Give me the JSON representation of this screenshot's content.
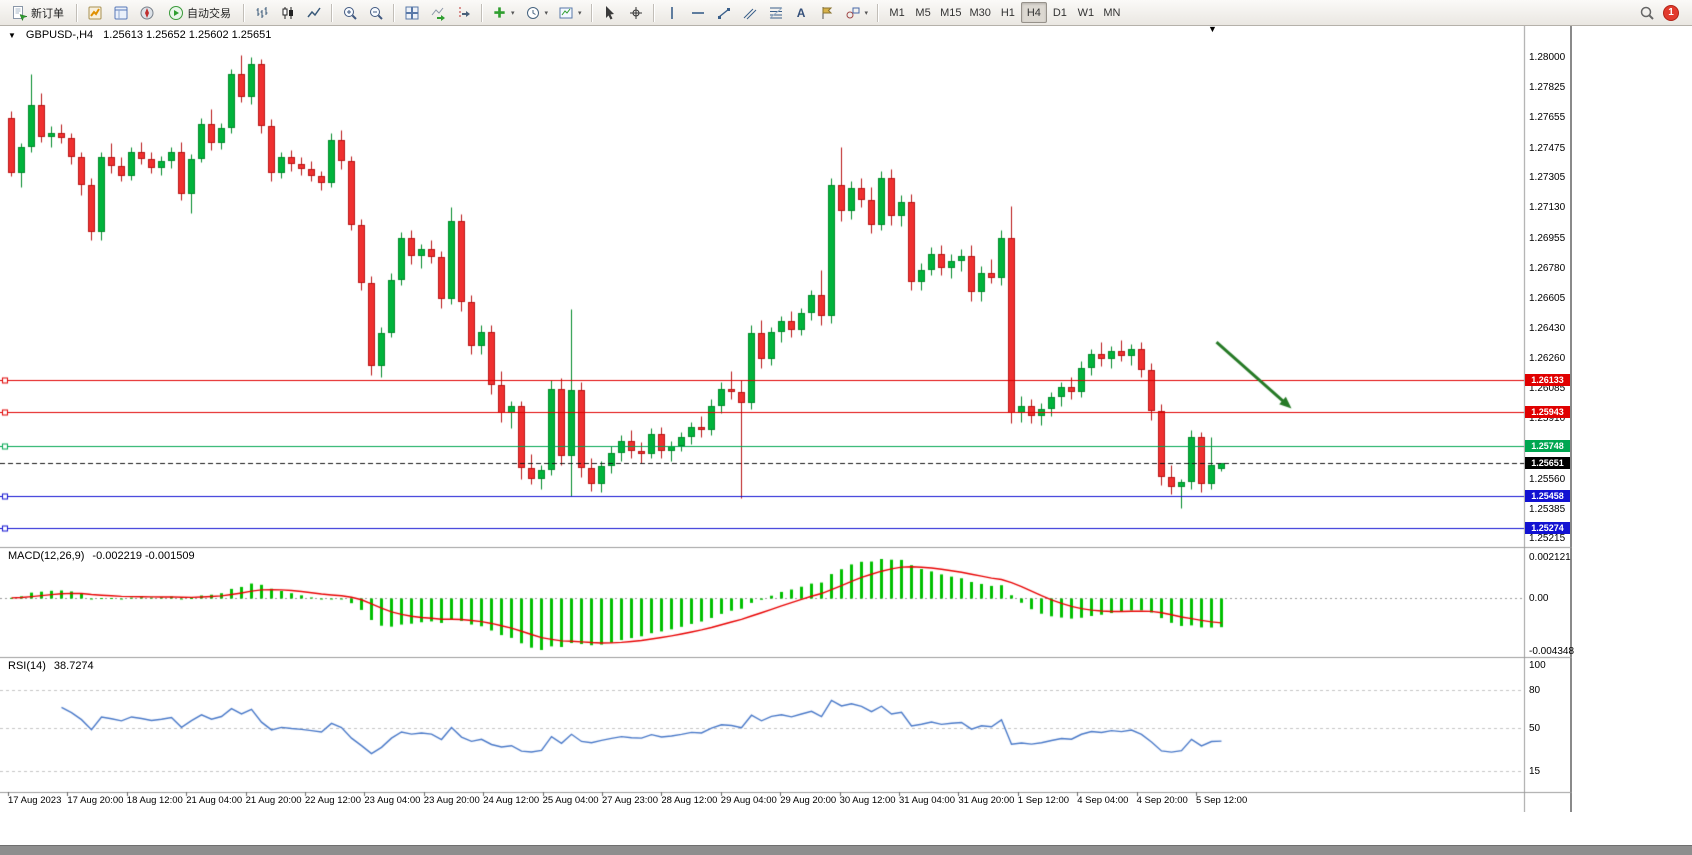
{
  "toolbar": {
    "new_order_label": "新订单",
    "auto_trading_label": "自动交易",
    "text_tool_label": "A",
    "timeframes": [
      "M1",
      "M5",
      "M15",
      "M30",
      "H1",
      "H4",
      "D1",
      "W1",
      "MN"
    ],
    "active_timeframe": "H4",
    "notification_count": "1",
    "icons": [
      "new-order",
      "market-watch",
      "data-window",
      "navigator",
      "auto-trading",
      "bar-chart",
      "candlestick-chart",
      "line-chart",
      "zoom-in",
      "zoom-out",
      "tile-windows",
      "auto-scroll",
      "chart-shift",
      "indicators",
      "periods",
      "templates",
      "cursor",
      "crosshair",
      "vertical-line",
      "horizontal-line",
      "trendline",
      "channel",
      "fibonacci",
      "text",
      "text-label",
      "shapes",
      "search",
      "notification"
    ]
  },
  "chart": {
    "symbol": "GBPUSD-",
    "timeframe": "H4",
    "title": "GBPUSD-,H4",
    "ohlc": "1.25613 1.25652 1.25602 1.25651",
    "open": "1.25613",
    "high": "1.25652",
    "low": "1.25602",
    "close": "1.25651",
    "price_axis": [
      "1.28000",
      "1.27825",
      "1.27655",
      "1.27475",
      "1.27305",
      "1.27130",
      "1.26955",
      "1.26780",
      "1.26605",
      "1.26430",
      "1.26260",
      "1.26085",
      "1.25910",
      "1.25735",
      "1.25560",
      "1.25385",
      "1.25215"
    ],
    "time_axis": [
      "17 Aug 2023",
      "17 Aug 20:00",
      "18 Aug 12:00",
      "21 Aug 04:00",
      "21 Aug 20:00",
      "22 Aug 12:00",
      "23 Aug 04:00",
      "23 Aug 20:00",
      "24 Aug 12:00",
      "25 Aug 04:00",
      "27 Aug 23:00",
      "28 Aug 12:00",
      "29 Aug 04:00",
      "29 Aug 20:00",
      "30 Aug 12:00",
      "31 Aug 04:00",
      "31 Aug 20:00",
      "1 Sep 12:00",
      "4 Sep 04:00",
      "4 Sep 20:00",
      "5 Sep 12:00"
    ],
    "levels": [
      {
        "label": "1.26133",
        "price": 1.26133,
        "color": "#e00000"
      },
      {
        "label": "1.25943",
        "price": 1.25943,
        "color": "#e00000"
      },
      {
        "label": "1.25748",
        "price": 1.25748,
        "color": "#00a651"
      },
      {
        "label": "1.25458",
        "price": 1.25458,
        "color": "#1212d2"
      },
      {
        "label": "1.25274",
        "price": 1.25274,
        "color": "#1212d2"
      }
    ],
    "current_price": {
      "label": "1.25651",
      "price": 1.25651,
      "color": "#000000"
    },
    "colors": {
      "up": "#00b43c",
      "up_border": "#008a2a",
      "down": "#f03030",
      "down_border": "#b81414",
      "background": "#ffffff",
      "axis_text": "#000000"
    },
    "arrow": {
      "from_bar": 120.5,
      "from_price": 1.2635,
      "to_bar": 128.0,
      "to_price": 1.25965,
      "color": "#267a26"
    }
  },
  "macd": {
    "name": "MACD(12,26,9)",
    "values_label": "-0.002219 -0.001509",
    "main_value": -0.002219,
    "signal_value": -0.001509,
    "scale": [
      "0.002121",
      "0.00",
      "-0.004348"
    ],
    "histogram_color": "#00c000",
    "signal_color": "#e80000",
    "params": {
      "fast": 12,
      "slow": 26,
      "signal": 9
    }
  },
  "rsi": {
    "name": "RSI(14)",
    "value_label": "38.7274",
    "value": 38.7274,
    "scale": [
      "100",
      "80",
      "50",
      "15"
    ],
    "line_color": "#4878c8",
    "period": 14
  },
  "chart_data": {
    "type": "candlestick",
    "symbol": "GBPUSD-",
    "timeframe": "H4",
    "title": "GBPUSD-,H4",
    "visible_price_range": [
      1.25163,
      1.2818
    ],
    "indicators": [
      {
        "name": "MACD",
        "params": [
          12,
          26,
          9
        ],
        "last_values": [
          -0.002219,
          -0.001509
        ],
        "scale_max": 0.002121,
        "scale_min": -0.004348
      },
      {
        "name": "RSI",
        "params": [
          14
        ],
        "last_value": 38.7274,
        "scale": [
          100,
          80,
          50,
          15
        ]
      }
    ],
    "ohlc_format": [
      "open",
      "high",
      "low",
      "close"
    ],
    "candles": [
      [
        1.2765,
        1.2769,
        1.2731,
        1.2733
      ],
      [
        1.2733,
        1.275,
        1.2725,
        1.2748
      ],
      [
        1.2748,
        1.279,
        1.2745,
        1.2772
      ],
      [
        1.2772,
        1.2779,
        1.2751,
        1.2754
      ],
      [
        1.2754,
        1.276,
        1.2748,
        1.2756
      ],
      [
        1.2756,
        1.2761,
        1.275,
        1.2753
      ],
      [
        1.2753,
        1.2756,
        1.2738,
        1.2742
      ],
      [
        1.2742,
        1.2745,
        1.272,
        1.2726
      ],
      [
        1.2726,
        1.273,
        1.2694,
        1.2699
      ],
      [
        1.2699,
        1.2745,
        1.2694,
        1.2742
      ],
      [
        1.2742,
        1.275,
        1.2733,
        1.2737
      ],
      [
        1.2737,
        1.2742,
        1.2728,
        1.2731
      ],
      [
        1.2731,
        1.2748,
        1.2729,
        1.2745
      ],
      [
        1.2745,
        1.2751,
        1.2738,
        1.2741
      ],
      [
        1.2741,
        1.2745,
        1.2733,
        1.2736
      ],
      [
        1.2736,
        1.2743,
        1.2732,
        1.274
      ],
      [
        1.274,
        1.2748,
        1.2736,
        1.2745
      ],
      [
        1.2745,
        1.2751,
        1.2717,
        1.2721
      ],
      [
        1.2721,
        1.2744,
        1.271,
        1.2741
      ],
      [
        1.2741,
        1.2765,
        1.2739,
        1.2761
      ],
      [
        1.2761,
        1.277,
        1.2746,
        1.275
      ],
      [
        1.275,
        1.2762,
        1.2747,
        1.2759
      ],
      [
        1.2759,
        1.2793,
        1.2756,
        1.279
      ],
      [
        1.279,
        1.2801,
        1.2774,
        1.2777
      ],
      [
        1.2777,
        1.28,
        1.2773,
        1.2796
      ],
      [
        1.2796,
        1.2799,
        1.2756,
        1.276
      ],
      [
        1.276,
        1.2764,
        1.2728,
        1.2733
      ],
      [
        1.2733,
        1.2745,
        1.273,
        1.2742
      ],
      [
        1.2742,
        1.2746,
        1.2734,
        1.2738
      ],
      [
        1.2738,
        1.2742,
        1.2732,
        1.2735
      ],
      [
        1.2735,
        1.274,
        1.2728,
        1.2731
      ],
      [
        1.2731,
        1.2734,
        1.2723,
        1.2727
      ],
      [
        1.2727,
        1.2756,
        1.2725,
        1.2752
      ],
      [
        1.2752,
        1.2758,
        1.2735,
        1.274
      ],
      [
        1.274,
        1.2743,
        1.27,
        1.2703
      ],
      [
        1.2703,
        1.2706,
        1.2665,
        1.2669
      ],
      [
        1.2669,
        1.2673,
        1.2616,
        1.2621
      ],
      [
        1.2621,
        1.2644,
        1.2615,
        1.264
      ],
      [
        1.264,
        1.2675,
        1.2638,
        1.2671
      ],
      [
        1.2671,
        1.2699,
        1.2668,
        1.2695
      ],
      [
        1.2695,
        1.27,
        1.268,
        1.2685
      ],
      [
        1.2685,
        1.2692,
        1.2678,
        1.2689
      ],
      [
        1.2689,
        1.2694,
        1.2681,
        1.2684
      ],
      [
        1.2684,
        1.2688,
        1.2655,
        1.266
      ],
      [
        1.266,
        1.2713,
        1.2657,
        1.2705
      ],
      [
        1.2705,
        1.2709,
        1.2653,
        1.2658
      ],
      [
        1.2658,
        1.2662,
        1.2628,
        1.2633
      ],
      [
        1.2633,
        1.2645,
        1.2628,
        1.2641
      ],
      [
        1.2641,
        1.2645,
        1.2605,
        1.261
      ],
      [
        1.261,
        1.2618,
        1.2589,
        1.2594
      ],
      [
        1.2594,
        1.2601,
        1.2585,
        1.2598
      ],
      [
        1.2598,
        1.2601,
        1.2556,
        1.2562
      ],
      [
        1.2562,
        1.257,
        1.2553,
        1.2556
      ],
      [
        1.2556,
        1.2564,
        1.255,
        1.2561
      ],
      [
        1.2561,
        1.2613,
        1.2558,
        1.2608
      ],
      [
        1.2608,
        1.2614,
        1.2564,
        1.2569
      ],
      [
        1.2569,
        1.2654,
        1.2546,
        1.2607
      ],
      [
        1.2607,
        1.2612,
        1.2557,
        1.2562
      ],
      [
        1.2562,
        1.2568,
        1.2549,
        1.2553
      ],
      [
        1.2553,
        1.2566,
        1.2548,
        1.2563
      ],
      [
        1.2563,
        1.2575,
        1.2559,
        1.2571
      ],
      [
        1.2571,
        1.2581,
        1.2566,
        1.2578
      ],
      [
        1.2578,
        1.2584,
        1.2568,
        1.2572
      ],
      [
        1.2572,
        1.2577,
        1.2565,
        1.257
      ],
      [
        1.257,
        1.2585,
        1.2568,
        1.2582
      ],
      [
        1.2582,
        1.2586,
        1.2568,
        1.2572
      ],
      [
        1.2572,
        1.2578,
        1.2566,
        1.2575
      ],
      [
        1.2575,
        1.2583,
        1.2572,
        1.258
      ],
      [
        1.258,
        1.2589,
        1.2576,
        1.2586
      ],
      [
        1.2586,
        1.2592,
        1.258,
        1.2584
      ],
      [
        1.2584,
        1.2602,
        1.2581,
        1.2598
      ],
      [
        1.2598,
        1.2612,
        1.2594,
        1.2608
      ],
      [
        1.2608,
        1.2618,
        1.2602,
        1.2606
      ],
      [
        1.2606,
        1.2613,
        1.2545,
        1.26
      ],
      [
        1.26,
        1.2645,
        1.2596,
        1.264
      ],
      [
        1.264,
        1.2648,
        1.262,
        1.2625
      ],
      [
        1.2625,
        1.2644,
        1.2622,
        1.2641
      ],
      [
        1.2641,
        1.265,
        1.2635,
        1.2647
      ],
      [
        1.2647,
        1.2653,
        1.2638,
        1.2642
      ],
      [
        1.2642,
        1.2655,
        1.2639,
        1.2652
      ],
      [
        1.2652,
        1.2665,
        1.2648,
        1.2662
      ],
      [
        1.2662,
        1.2677,
        1.2645,
        1.265
      ],
      [
        1.265,
        1.273,
        1.2646,
        1.2726
      ],
      [
        1.2726,
        1.2748,
        1.2705,
        1.2711
      ],
      [
        1.2711,
        1.2728,
        1.2706,
        1.2724
      ],
      [
        1.2724,
        1.273,
        1.2713,
        1.2717
      ],
      [
        1.2717,
        1.2725,
        1.2698,
        1.2703
      ],
      [
        1.2703,
        1.2734,
        1.27,
        1.273
      ],
      [
        1.273,
        1.2735,
        1.2703,
        1.2708
      ],
      [
        1.2708,
        1.272,
        1.2702,
        1.2716
      ],
      [
        1.2716,
        1.2721,
        1.2665,
        1.267
      ],
      [
        1.267,
        1.2681,
        1.2665,
        1.2677
      ],
      [
        1.2677,
        1.269,
        1.2674,
        1.2686
      ],
      [
        1.2686,
        1.2691,
        1.2674,
        1.2678
      ],
      [
        1.2678,
        1.2686,
        1.2672,
        1.2682
      ],
      [
        1.2682,
        1.2689,
        1.2676,
        1.2685
      ],
      [
        1.2685,
        1.2691,
        1.2659,
        1.2664
      ],
      [
        1.2664,
        1.2679,
        1.2659,
        1.2675
      ],
      [
        1.2675,
        1.2683,
        1.2669,
        1.2672
      ],
      [
        1.2672,
        1.27,
        1.2668,
        1.2695
      ],
      [
        1.2695,
        1.2714,
        1.2588,
        1.2594
      ],
      [
        1.2594,
        1.2604,
        1.2589,
        1.2598
      ],
      [
        1.2598,
        1.2602,
        1.2588,
        1.2592
      ],
      [
        1.2592,
        1.26,
        1.2587,
        1.2596
      ],
      [
        1.2596,
        1.2606,
        1.2592,
        1.2603
      ],
      [
        1.2603,
        1.2612,
        1.2598,
        1.2609
      ],
      [
        1.2609,
        1.2615,
        1.2602,
        1.2606
      ],
      [
        1.2606,
        1.2624,
        1.2603,
        1.262
      ],
      [
        1.262,
        1.2631,
        1.2616,
        1.2628
      ],
      [
        1.2628,
        1.2635,
        1.2621,
        1.2625
      ],
      [
        1.2625,
        1.2633,
        1.262,
        1.263
      ],
      [
        1.263,
        1.2636,
        1.2624,
        1.2627
      ],
      [
        1.2627,
        1.2634,
        1.2622,
        1.2631
      ],
      [
        1.2631,
        1.2635,
        1.2615,
        1.2619
      ],
      [
        1.2619,
        1.2623,
        1.259,
        1.2595
      ],
      [
        1.2595,
        1.2599,
        1.2552,
        1.2557
      ],
      [
        1.2557,
        1.2564,
        1.2547,
        1.2551
      ],
      [
        1.2551,
        1.2556,
        1.2539,
        1.2554
      ],
      [
        1.2554,
        1.2584,
        1.255,
        1.258
      ],
      [
        1.258,
        1.2583,
        1.2548,
        1.2553
      ],
      [
        1.2553,
        1.258,
        1.255,
        1.2564
      ],
      [
        1.25613,
        1.25652,
        1.25602,
        1.25651
      ]
    ]
  }
}
